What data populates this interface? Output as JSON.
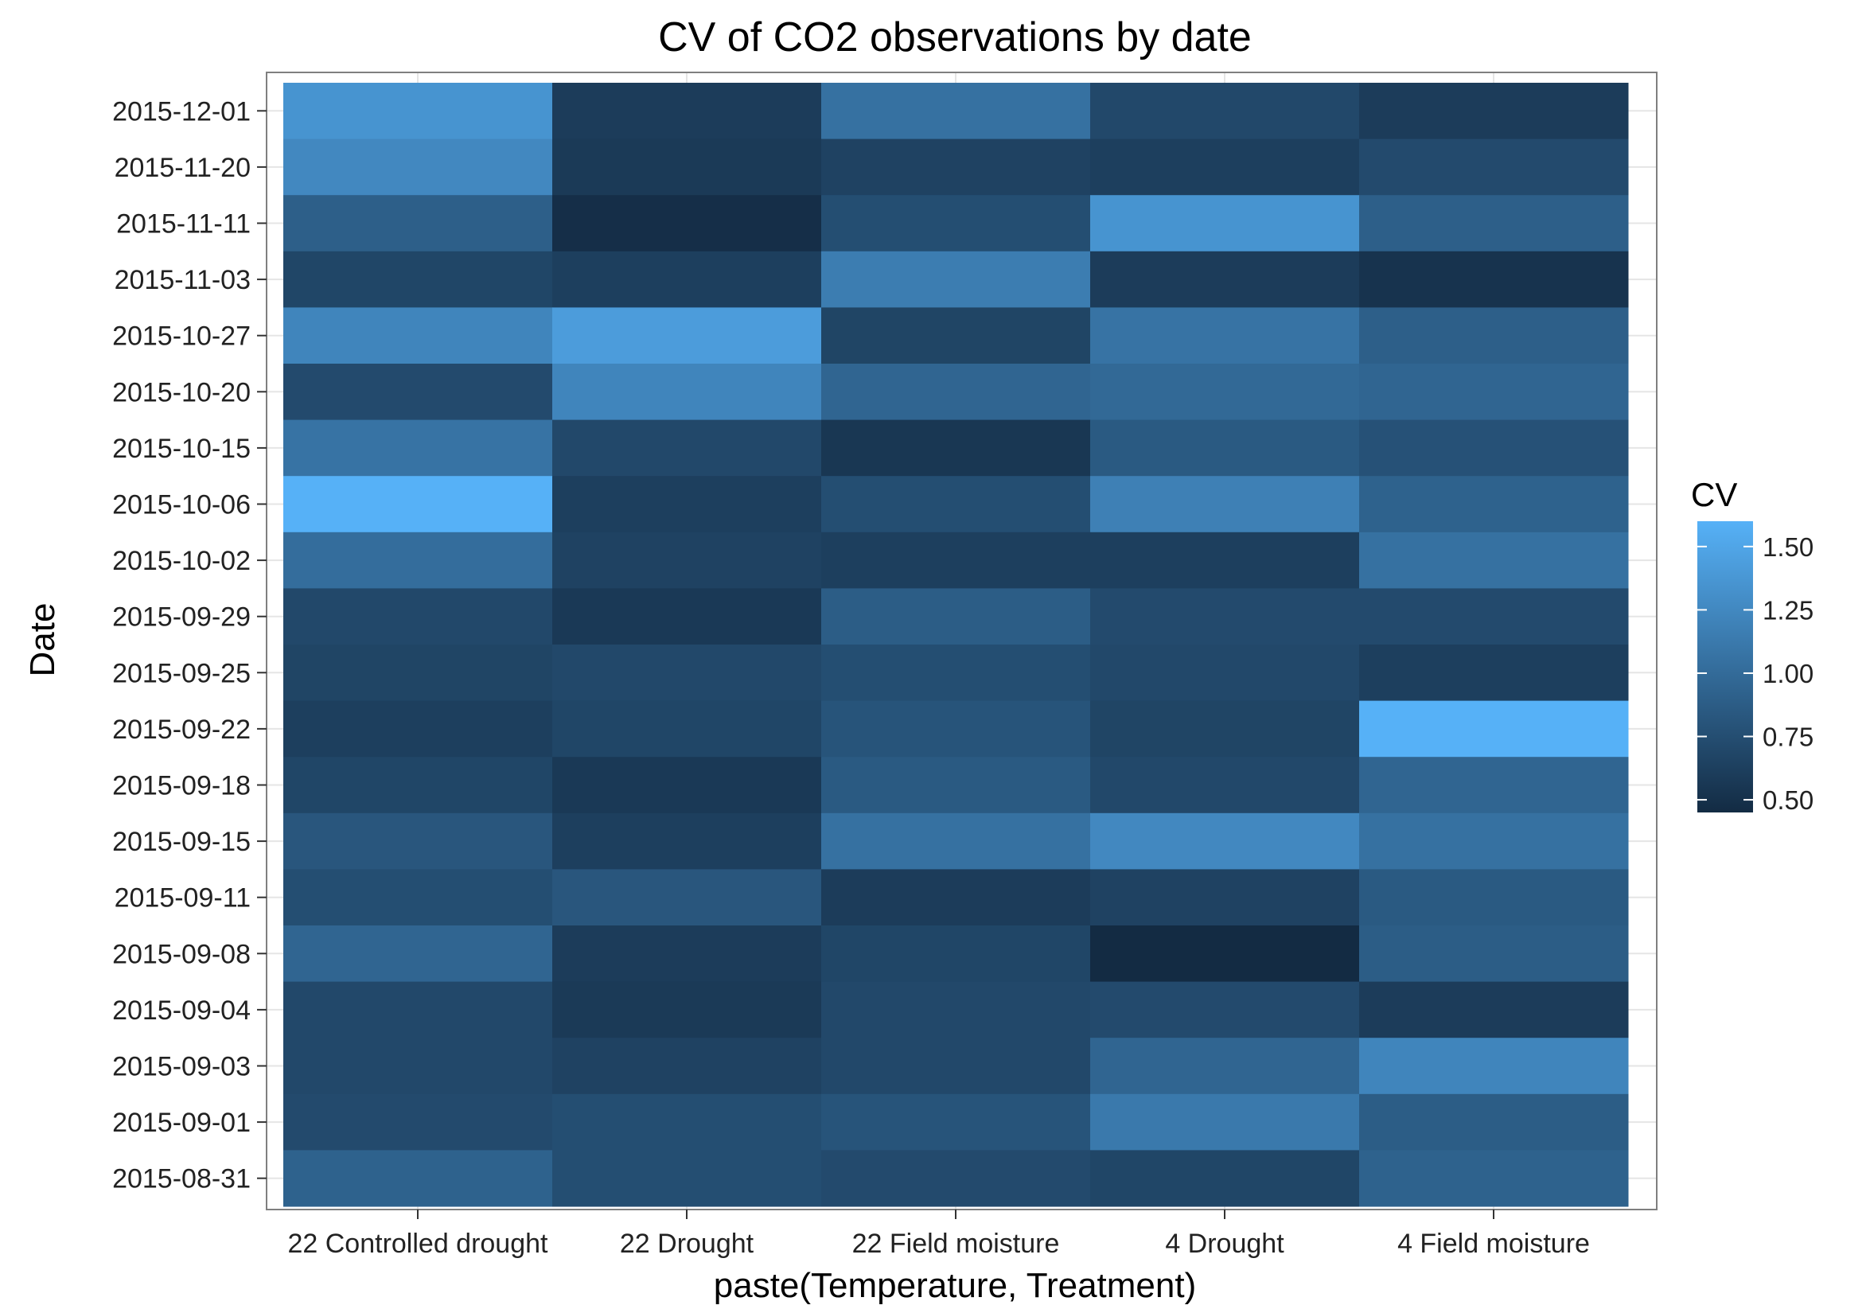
{
  "chart_data": {
    "type": "heatmap",
    "title": "CV of CO2 observations by date",
    "xlabel": "paste(Temperature, Treatment)",
    "ylabel": "Date",
    "x_categories": [
      "22 Controlled drought",
      "22 Drought",
      "22 Field moisture",
      "4 Drought",
      "4 Field moisture"
    ],
    "y_categories": [
      "2015-12-01",
      "2015-11-20",
      "2015-11-11",
      "2015-11-03",
      "2015-10-27",
      "2015-10-20",
      "2015-10-15",
      "2015-10-06",
      "2015-10-02",
      "2015-09-29",
      "2015-09-25",
      "2015-09-22",
      "2015-09-18",
      "2015-09-15",
      "2015-09-11",
      "2015-09-08",
      "2015-09-04",
      "2015-09-03",
      "2015-09-01",
      "2015-08-31"
    ],
    "values": [
      [
        1.35,
        0.6,
        1.05,
        0.7,
        0.6
      ],
      [
        1.25,
        0.58,
        0.65,
        0.62,
        0.72
      ],
      [
        0.9,
        0.48,
        0.75,
        1.35,
        0.9
      ],
      [
        0.68,
        0.62,
        1.15,
        0.6,
        0.52
      ],
      [
        1.22,
        1.42,
        0.67,
        1.07,
        0.9
      ],
      [
        0.72,
        1.22,
        0.95,
        0.98,
        0.95
      ],
      [
        1.07,
        0.7,
        0.55,
        0.85,
        0.78
      ],
      [
        1.62,
        0.62,
        0.75,
        1.18,
        0.92
      ],
      [
        1.02,
        0.65,
        0.62,
        0.62,
        1.05
      ],
      [
        0.7,
        0.57,
        0.88,
        0.72,
        0.72
      ],
      [
        0.67,
        0.7,
        0.75,
        0.7,
        0.62
      ],
      [
        0.62,
        0.68,
        0.8,
        0.67,
        1.62
      ],
      [
        0.68,
        0.57,
        0.85,
        0.7,
        0.95
      ],
      [
        0.82,
        0.62,
        1.05,
        1.25,
        1.05
      ],
      [
        0.75,
        0.82,
        0.6,
        0.65,
        0.85
      ],
      [
        0.95,
        0.6,
        0.68,
        0.45,
        0.88
      ],
      [
        0.7,
        0.58,
        0.7,
        0.72,
        0.6
      ],
      [
        0.7,
        0.65,
        0.7,
        0.95,
        1.22
      ],
      [
        0.72,
        0.75,
        0.8,
        1.12,
        0.88
      ],
      [
        0.92,
        0.75,
        0.72,
        0.68,
        0.92
      ]
    ],
    "legend": {
      "title": "CV",
      "placement": "right",
      "ticks": [
        0.5,
        0.75,
        1.0,
        1.25,
        1.5
      ],
      "tick_labels": [
        "0.50",
        "0.75",
        "1.00",
        "1.25",
        "1.50"
      ],
      "range": [
        0.45,
        1.6
      ],
      "color_low": "#132B43",
      "color_high": "#56B1F7"
    },
    "grid": true
  }
}
